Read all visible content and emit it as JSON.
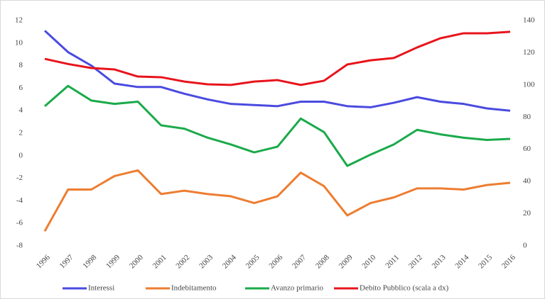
{
  "chart_data": {
    "type": "line",
    "categories": [
      "1996",
      "1997",
      "1998",
      "1999",
      "2000",
      "2001",
      "2002",
      "2003",
      "2004",
      "2005",
      "2006",
      "2007",
      "2008",
      "2009",
      "2010",
      "2011",
      "2012",
      "2013",
      "2014",
      "2015",
      "2016"
    ],
    "series": [
      {
        "name": "Interessi",
        "color": "#4a4ae0",
        "values": [
          11.1,
          9.2,
          8.0,
          6.4,
          6.1,
          6.1,
          5.5,
          5.0,
          4.6,
          4.5,
          4.4,
          4.8,
          4.8,
          4.4,
          4.3,
          4.7,
          5.2,
          4.8,
          4.6,
          4.2,
          4.0
        ]
      },
      {
        "name": "Indebitamento",
        "color": "#ed7d31",
        "values": [
          -6.7,
          -3.0,
          -3.0,
          -1.8,
          -1.3,
          -3.4,
          -3.1,
          -3.4,
          -3.6,
          -4.2,
          -3.6,
          -1.5,
          -2.7,
          -5.3,
          -4.2,
          -3.7,
          -2.9,
          -2.9,
          -3.0,
          -2.6,
          -2.4
        ]
      },
      {
        "name": "Avanzo primario",
        "color": "#1aaa4a",
        "values": [
          4.4,
          6.2,
          4.9,
          4.6,
          4.8,
          2.7,
          2.4,
          1.6,
          1.0,
          0.3,
          0.8,
          3.3,
          2.1,
          -0.9,
          0.1,
          1.0,
          2.3,
          1.9,
          1.6,
          1.4,
          1.5
        ]
      },
      {
        "name": "Debito Pubblico (scala a dx)",
        "color": "#e8141c",
        "axis": "y2",
        "values": [
          116.2,
          113,
          110.5,
          109.6,
          105.2,
          104.8,
          102.1,
          100.4,
          100,
          102.1,
          103,
          100,
          102.6,
          112.7,
          115.3,
          116.7,
          123.3,
          129,
          132.1,
          132.1,
          133
        ]
      }
    ],
    "ylim": [
      -8,
      12
    ],
    "yticks": [
      -8,
      -6,
      -4,
      -2,
      0,
      2,
      4,
      6,
      8,
      10,
      12
    ],
    "y2lim": [
      0,
      140
    ],
    "y2ticks": [
      0,
      20,
      40,
      60,
      80,
      100,
      120,
      140
    ],
    "grid": false,
    "legend": "bottom"
  }
}
